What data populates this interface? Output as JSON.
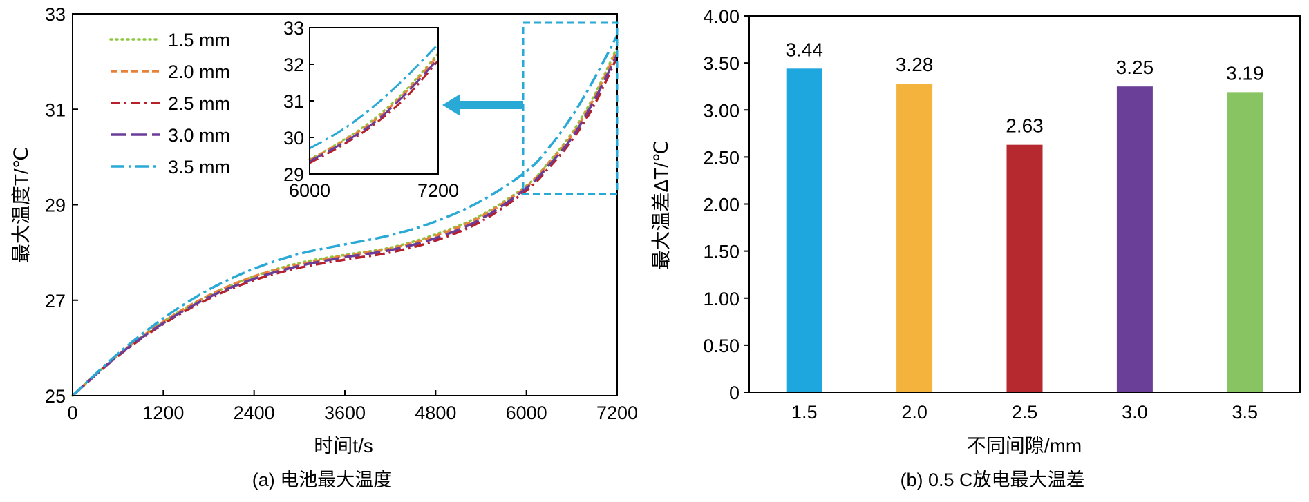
{
  "chart_data": [
    {
      "type": "line",
      "caption": "(a) 电池最大温度",
      "xlabel": "时间t/s",
      "ylabel": "最大温度T/℃",
      "xlim": [
        0,
        7200
      ],
      "ylim": [
        25,
        33
      ],
      "xticks": [
        "0",
        "1200",
        "2400",
        "3600",
        "4800",
        "6000",
        "7200"
      ],
      "yticks": [
        "25",
        "27",
        "29",
        "31",
        "33"
      ],
      "legend_position": "top-left",
      "series": [
        {
          "name": "1.5 mm",
          "color": "#8dc63f",
          "style": "dotted",
          "x": [
            0,
            600,
            1200,
            1800,
            2400,
            3000,
            3600,
            4200,
            4800,
            5400,
            6000,
            6300,
            6600,
            6900,
            7200
          ],
          "y": [
            25.0,
            25.85,
            26.55,
            27.1,
            27.5,
            27.78,
            27.95,
            28.1,
            28.38,
            28.78,
            29.4,
            29.9,
            30.5,
            31.3,
            32.3
          ]
        },
        {
          "name": "2.0 mm",
          "color": "#e8823a",
          "style": "dashed",
          "x": [
            0,
            600,
            1200,
            1800,
            2400,
            3000,
            3600,
            4200,
            4800,
            5400,
            6000,
            6300,
            6600,
            6900,
            7200
          ],
          "y": [
            25.0,
            25.85,
            26.55,
            27.1,
            27.5,
            27.75,
            27.93,
            28.08,
            28.35,
            28.75,
            29.38,
            29.88,
            30.45,
            31.25,
            32.25
          ]
        },
        {
          "name": "2.5 mm",
          "color": "#b5202a",
          "style": "dashdot",
          "x": [
            0,
            600,
            1200,
            1800,
            2400,
            3000,
            3600,
            4200,
            4800,
            5400,
            6000,
            6300,
            6600,
            6900,
            7200
          ],
          "y": [
            25.0,
            25.83,
            26.5,
            27.03,
            27.42,
            27.68,
            27.85,
            28.0,
            28.25,
            28.65,
            29.3,
            29.78,
            30.35,
            31.1,
            32.1
          ]
        },
        {
          "name": "3.0 mm",
          "color": "#6b3c98",
          "style": "longdash",
          "x": [
            0,
            600,
            1200,
            1800,
            2400,
            3000,
            3600,
            4200,
            4800,
            5400,
            6000,
            6300,
            6600,
            6900,
            7200
          ],
          "y": [
            25.0,
            25.84,
            26.52,
            27.06,
            27.45,
            27.72,
            27.9,
            28.05,
            28.3,
            28.7,
            29.35,
            29.83,
            30.4,
            31.2,
            32.15
          ]
        },
        {
          "name": "3.5 mm",
          "color": "#29a9d6",
          "style": "dashdot-long",
          "x": [
            0,
            600,
            1200,
            1800,
            2400,
            3000,
            3600,
            4200,
            4800,
            5400,
            6000,
            6300,
            6600,
            6900,
            7200
          ],
          "y": [
            25.0,
            25.88,
            26.62,
            27.22,
            27.66,
            27.97,
            28.17,
            28.36,
            28.65,
            29.08,
            29.7,
            30.2,
            30.85,
            31.65,
            32.55
          ]
        }
      ],
      "inset": {
        "xlim": [
          6000,
          7200
        ],
        "ylim": [
          29,
          33
        ],
        "xticks": [
          "6000",
          "7200"
        ],
        "yticks": [
          "29",
          "30",
          "31",
          "32",
          "33"
        ]
      }
    },
    {
      "type": "bar",
      "caption": "(b) 0.5 C放电最大温差",
      "xlabel": "不同间隙/mm",
      "ylabel": "最大温差ΔT/℃",
      "categories": [
        "1.5",
        "2.0",
        "2.5",
        "3.0",
        "3.5"
      ],
      "values": [
        3.44,
        3.28,
        2.63,
        3.25,
        3.19
      ],
      "value_labels": [
        "3.44",
        "3.28",
        "2.63",
        "3.25",
        "3.19"
      ],
      "colors": [
        "#1ea6df",
        "#f3b33d",
        "#b5292f",
        "#6a3f98",
        "#88c461"
      ],
      "ylim": [
        0,
        4.0
      ],
      "yticks": [
        "0",
        "0.50",
        "1.00",
        "1.50",
        "2.00",
        "2.50",
        "3.00",
        "3.50",
        "4.00"
      ]
    }
  ]
}
